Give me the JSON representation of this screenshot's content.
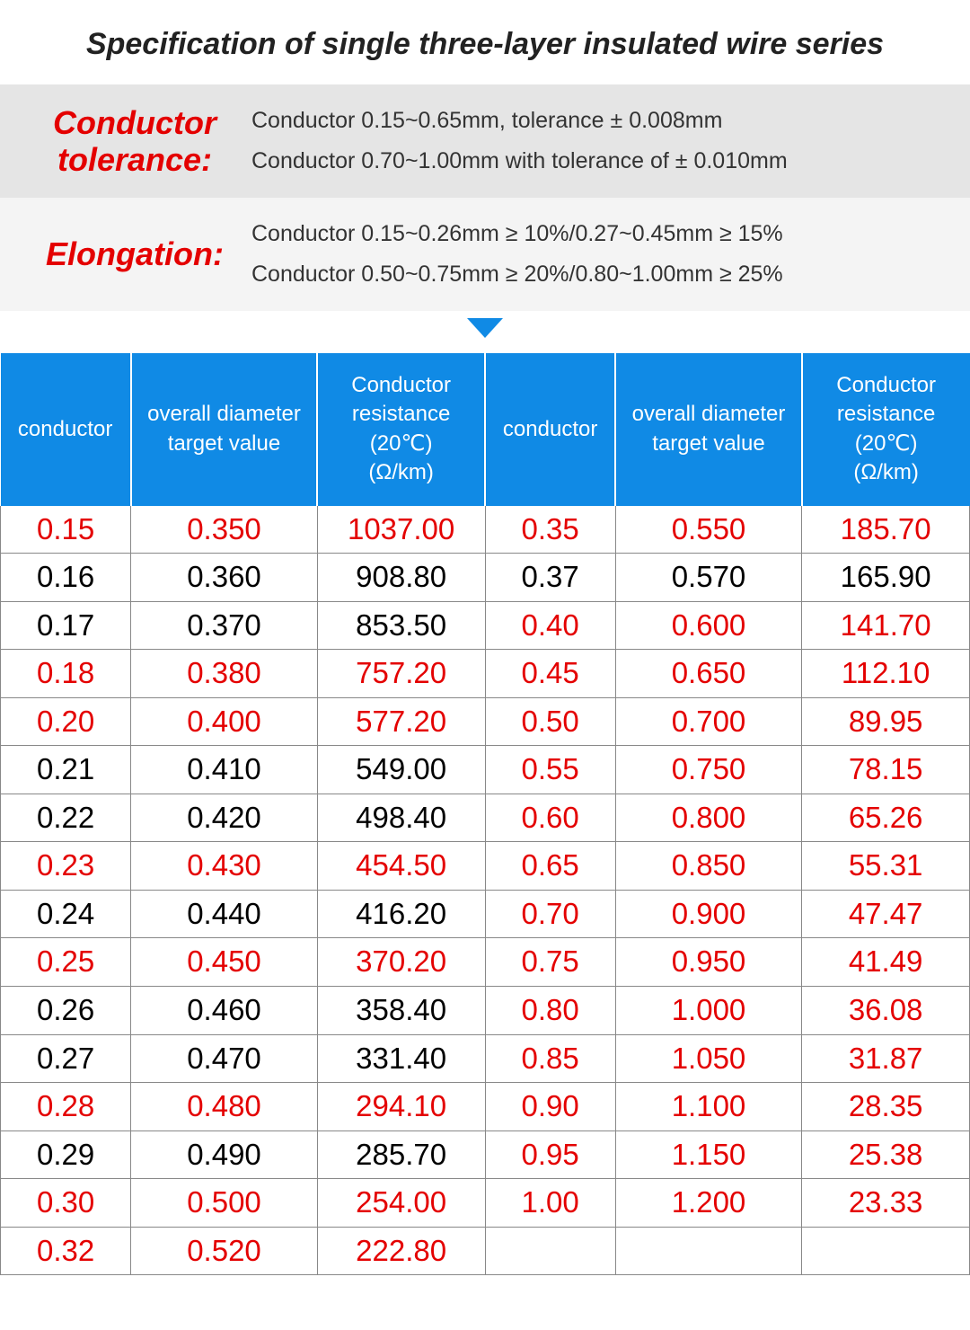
{
  "title": "Specification of single three-layer insulated wire series",
  "tolerance": {
    "label": "Conductor tolerance:",
    "line1": "Conductor 0.15~0.65mm, tolerance ± 0.008mm",
    "line2": "Conductor 0.70~1.00mm with tolerance of ± 0.010mm"
  },
  "elongation": {
    "label": "Elongation:",
    "line1": "Conductor 0.15~0.26mm ≥ 10%/0.27~0.45mm ≥ 15%",
    "line2": "Conductor 0.50~0.75mm ≥ 20%/0.80~1.00mm ≥ 25%"
  },
  "colors": {
    "header_bg": "#108ae5",
    "header_text": "#ffffff",
    "red_text": "#e40000",
    "black_text": "#000000",
    "box1_bg": "#e5e5e5",
    "box2_bg": "#f4f4f4",
    "arrow": "#108ae5",
    "title_color": "#222222"
  },
  "table": {
    "headers": {
      "c1": "conductor",
      "c2": "overall diameter target value",
      "c3": "Conductor resistance (20℃)\n(Ω/km)",
      "c4": "conductor",
      "c5": "overall diameter target value",
      "c6": "Conductor resistance (20℃)\n(Ω/km)"
    },
    "col_widths_pct": [
      14,
      20,
      18,
      14,
      20,
      18
    ],
    "rows": [
      {
        "left": [
          "0.15",
          "0.350",
          "1037.00"
        ],
        "left_color": "red",
        "right": [
          "0.35",
          "0.550",
          "185.70"
        ],
        "right_color": "red"
      },
      {
        "left": [
          "0.16",
          "0.360",
          "908.80"
        ],
        "left_color": "black",
        "right": [
          "0.37",
          "0.570",
          "165.90"
        ],
        "right_color": "black"
      },
      {
        "left": [
          "0.17",
          "0.370",
          "853.50"
        ],
        "left_color": "black",
        "right": [
          "0.40",
          "0.600",
          "141.70"
        ],
        "right_color": "red"
      },
      {
        "left": [
          "0.18",
          "0.380",
          "757.20"
        ],
        "left_color": "red",
        "right": [
          "0.45",
          "0.650",
          "112.10"
        ],
        "right_color": "red"
      },
      {
        "left": [
          "0.20",
          "0.400",
          "577.20"
        ],
        "left_color": "red",
        "right": [
          "0.50",
          "0.700",
          "89.95"
        ],
        "right_color": "red"
      },
      {
        "left": [
          "0.21",
          "0.410",
          "549.00"
        ],
        "left_color": "black",
        "right": [
          "0.55",
          "0.750",
          "78.15"
        ],
        "right_color": "red"
      },
      {
        "left": [
          "0.22",
          "0.420",
          "498.40"
        ],
        "left_color": "black",
        "right": [
          "0.60",
          "0.800",
          "65.26"
        ],
        "right_color": "red"
      },
      {
        "left": [
          "0.23",
          "0.430",
          "454.50"
        ],
        "left_color": "red",
        "right": [
          "0.65",
          "0.850",
          "55.31"
        ],
        "right_color": "red"
      },
      {
        "left": [
          "0.24",
          "0.440",
          "416.20"
        ],
        "left_color": "black",
        "right": [
          "0.70",
          "0.900",
          "47.47"
        ],
        "right_color": "red"
      },
      {
        "left": [
          "0.25",
          "0.450",
          "370.20"
        ],
        "left_color": "red",
        "right": [
          "0.75",
          "0.950",
          "41.49"
        ],
        "right_color": "red"
      },
      {
        "left": [
          "0.26",
          "0.460",
          "358.40"
        ],
        "left_color": "black",
        "right": [
          "0.80",
          "1.000",
          "36.08"
        ],
        "right_color": "red"
      },
      {
        "left": [
          "0.27",
          "0.470",
          "331.40"
        ],
        "left_color": "black",
        "right": [
          "0.85",
          "1.050",
          "31.87"
        ],
        "right_color": "red"
      },
      {
        "left": [
          "0.28",
          "0.480",
          "294.10"
        ],
        "left_color": "red",
        "right": [
          "0.90",
          "1.100",
          "28.35"
        ],
        "right_color": "red"
      },
      {
        "left": [
          "0.29",
          "0.490",
          "285.70"
        ],
        "left_color": "black",
        "right": [
          "0.95",
          "1.150",
          "25.38"
        ],
        "right_color": "red"
      },
      {
        "left": [
          "0.30",
          "0.500",
          "254.00"
        ],
        "left_color": "red",
        "right": [
          "1.00",
          "1.200",
          "23.33"
        ],
        "right_color": "red"
      },
      {
        "left": [
          "0.32",
          "0.520",
          "222.80"
        ],
        "left_color": "red",
        "right": [
          "",
          "",
          ""
        ],
        "right_color": "black"
      }
    ]
  }
}
